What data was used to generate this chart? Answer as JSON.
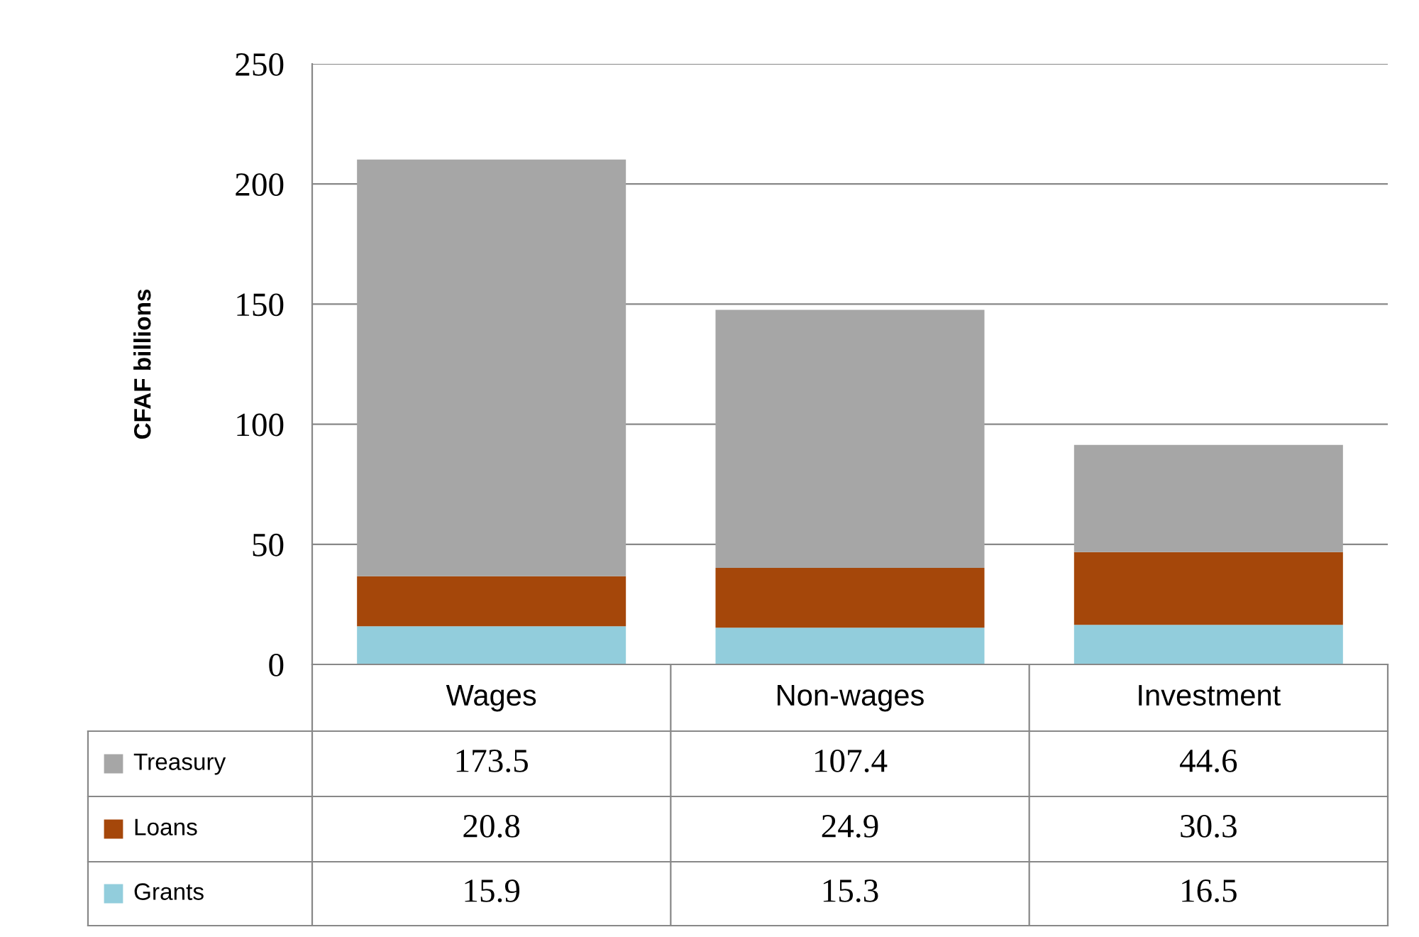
{
  "chart_data": {
    "type": "bar",
    "stacked": true,
    "ylabel": "CFAF billions",
    "categories": [
      "Wages",
      "Non-wages",
      "Investment"
    ],
    "series": [
      {
        "name": "Grants",
        "color": "#92cddc",
        "values": [
          15.9,
          15.3,
          16.5
        ]
      },
      {
        "name": "Loans",
        "color": "#a5470a",
        "values": [
          20.8,
          24.9,
          30.3
        ]
      },
      {
        "name": "Treasury",
        "color": "#a6a6a6",
        "values": [
          173.5,
          107.4,
          44.6
        ]
      }
    ],
    "ylim": [
      0,
      250
    ],
    "yticks": [
      0,
      50,
      100,
      150,
      200,
      250
    ],
    "grid": "y",
    "data_labels": true,
    "legend": "bottom"
  }
}
